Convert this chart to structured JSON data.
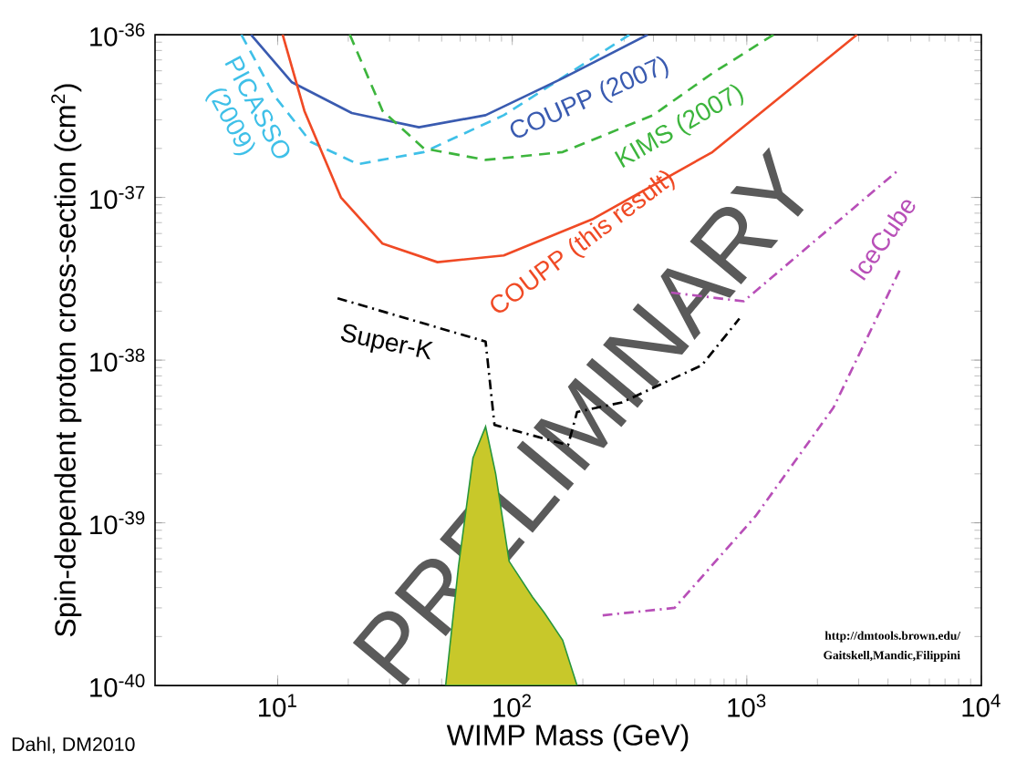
{
  "chart_data": {
    "type": "line",
    "log": "xy",
    "xlabel": "WIMP Mass (GeV)",
    "ylabel": "Spin-dependent proton cross-section (cm$^{2}$)",
    "xlim": [
      3,
      10000
    ],
    "ylim": [
      1e-40,
      1e-36
    ],
    "xticks": [
      {
        "value": 10,
        "label": "10$^{1}$"
      },
      {
        "value": 100,
        "label": "10$^{2}$"
      },
      {
        "value": 1000,
        "label": "10$^{3}$"
      },
      {
        "value": 10000,
        "label": "10$^{4}$"
      }
    ],
    "yticks": [
      {
        "value": 1e-40,
        "label": "10$^{-40}$"
      },
      {
        "value": 1e-39,
        "label": "10$^{-39}$"
      },
      {
        "value": 1e-38,
        "label": "10$^{-38}$"
      },
      {
        "value": 1e-37,
        "label": "10$^{-37}$"
      },
      {
        "value": 1e-36,
        "label": "10$^{-36}$"
      }
    ],
    "grid": false,
    "series": [
      {
        "type": "area",
        "color": "#c8c82a",
        "x": [
          52,
          59,
          68,
          77,
          85,
          97,
          122,
          137,
          164,
          189
        ],
        "values": [
          1e-40,
          5.4e-40,
          2.5e-39,
          3.9e-39,
          2e-39,
          5.8e-40,
          3.5e-40,
          2.8e-40,
          1.9e-40,
          1e-40
        ]
      },
      {
        "name": "PICASSO (2009)",
        "color": "#3fc0e8",
        "line_style": "dashed",
        "x": [
          7.0,
          9.7,
          13.8,
          22,
          42,
          92,
          316
        ],
        "values": [
          1e-36,
          4.2e-37,
          2.2e-37,
          1.6e-37,
          1.9e-37,
          3.2e-37,
          1e-36
        ]
      },
      {
        "name": "COUPP (2007)",
        "color": "#3a5bb0",
        "line_style": "solid",
        "x": [
          7.7,
          11.5,
          20.7,
          40,
          77,
          164,
          378
        ],
        "values": [
          1e-36,
          5.1e-37,
          3.3e-37,
          2.7e-37,
          3.2e-37,
          5.4e-37,
          1e-36
        ]
      },
      {
        "name": "KIMS (2007)",
        "color": "#3db53d",
        "line_style": "dashed",
        "x": [
          20.3,
          28,
          42,
          77,
          164,
          398,
          714,
          1300
        ],
        "values": [
          1e-36,
          3.4e-37,
          2e-37,
          1.7e-37,
          1.9e-37,
          3.2e-37,
          5.8e-37,
          1e-36
        ]
      },
      {
        "name": "COUPP (this result)",
        "color": "#f04a25",
        "line_style": "solid",
        "x": [
          10.5,
          13,
          18.6,
          28,
          48,
          92,
          222,
          714,
          2950
        ],
        "values": [
          1e-36,
          3.4e-37,
          1e-37,
          5.2e-38,
          4e-38,
          4.4e-38,
          7.4e-38,
          1.9e-37,
          1e-36
        ]
      },
      {
        "name": "Super-K",
        "color": "#000000",
        "line_style": "dashdot",
        "x": [
          18,
          77,
          84,
          173,
          189,
          294,
          643,
          930
        ],
        "values": [
          2.4e-38,
          1.3e-38,
          4e-39,
          3e-39,
          4.8e-39,
          5.5e-39,
          9.3e-39,
          1.8e-38
        ]
      },
      {
        "name": "IceCube",
        "color": "#b84fb8",
        "line_style": "dashdot",
        "x": [
          475,
          970,
          4500
        ],
        "values": [
          2.6e-38,
          2.3e-38,
          1.5e-37
        ]
      },
      {
        "color": "#b84fb8",
        "line_style": "dashdot",
        "x": [
          243,
          492,
          1090,
          2340,
          4500
        ],
        "values": [
          2.7e-40,
          3e-40,
          1.1e-39,
          5.1e-39,
          3.6e-38
        ]
      }
    ],
    "annotations": [
      "PRELIMINARY",
      "http://dmtools.brown.edu/",
      "Gaitskell,Mandic,Filippini",
      "Dahl, DM2010"
    ]
  }
}
